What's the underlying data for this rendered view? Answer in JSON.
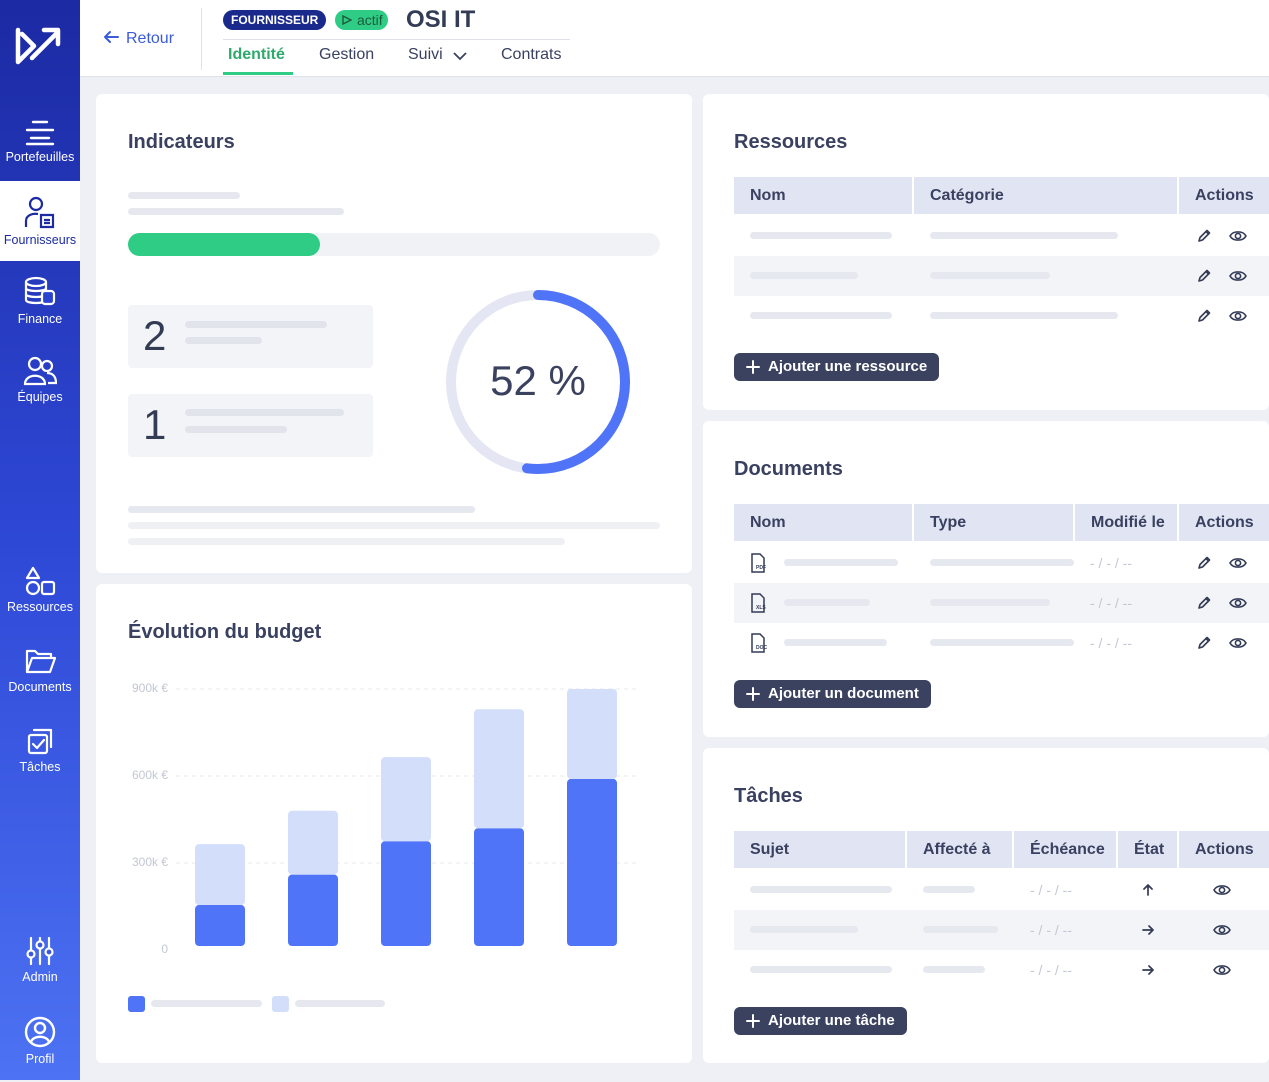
{
  "sidebar": {
    "items": [
      "Portefeuilles",
      "Fournisseurs",
      "Finance",
      "Équipes",
      "Ressources",
      "Documents",
      "Tâches",
      "Admin",
      "Profil"
    ]
  },
  "header": {
    "back": "Retour",
    "badge": "FOURNISSEUR",
    "status": "actif",
    "title": "OSI IT",
    "tabs": [
      "Identité",
      "Gestion",
      "Suivi",
      "Contrats"
    ]
  },
  "indicators": {
    "title": "Indicateurs",
    "progress": 36,
    "counts": [
      "2",
      "1"
    ],
    "gauge": {
      "value": 52,
      "value_label": "52 %"
    }
  },
  "chart_data": {
    "type": "bar",
    "stacked": true,
    "title": "Évolution du budget",
    "categories": [
      null,
      null,
      null,
      null,
      null
    ],
    "series": [
      {
        "color": "#4f74f7",
        "values": [
          155000,
          260000,
          375000,
          420000,
          590000
        ]
      },
      {
        "color": "#d3defb",
        "values": [
          210000,
          220000,
          290000,
          410000,
          310000
        ]
      }
    ],
    "ylim": [
      0,
      900000
    ],
    "yticks": [
      0,
      {
        "value": 300000,
        "label": "300k €"
      },
      {
        "value": 600000,
        "label": "600k €"
      },
      {
        "value": 900000,
        "label": "900k €"
      }
    ],
    "grid": true
  },
  "resources": {
    "title": "Ressources",
    "columns": [
      "Nom",
      "Catégorie",
      "Actions"
    ],
    "button": "Ajouter une ressource"
  },
  "documents": {
    "title": "Documents",
    "columns": [
      "Nom",
      "Type",
      "Modifié le",
      "Actions"
    ],
    "files": [
      "PDF",
      "XLS",
      "DOC"
    ],
    "dates": [
      "- / - / --",
      "- / - / --",
      "- / - / --"
    ],
    "button": "Ajouter un document"
  },
  "tasks": {
    "title": "Tâches",
    "columns": [
      "Sujet",
      "Affecté à",
      "Échéance",
      "État",
      "Actions"
    ],
    "dates": [
      "- / - / --",
      "- / - / --",
      "- / - / --"
    ],
    "button": "Ajouter une tâche"
  }
}
